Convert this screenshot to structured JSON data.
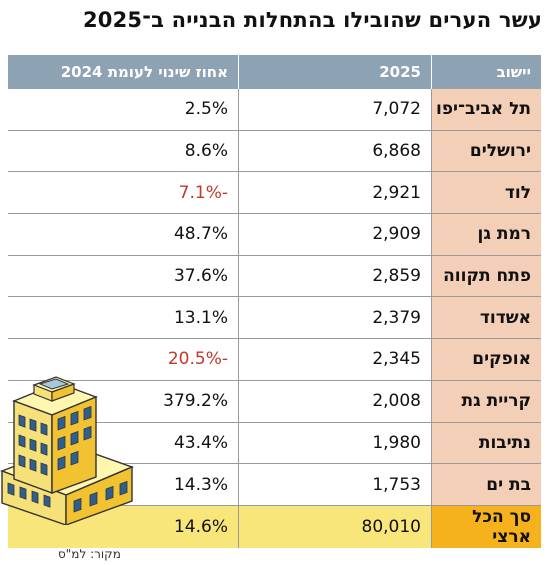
{
  "title": "עשר הערים שהובילו בהתחלות הבנייה ב־2025",
  "headers": {
    "city": "יישוב",
    "value": "2025",
    "pct": "אחוז שינוי לעומת 2024"
  },
  "rows": [
    {
      "city": "תל אביב־יפו",
      "value": "7,072",
      "pct": "2.5%"
    },
    {
      "city": "ירושלים",
      "value": "6,868",
      "pct": "8.6%"
    },
    {
      "city": "לוד",
      "value": "2,921",
      "pct": "-7.1%"
    },
    {
      "city": "רמת גן",
      "value": "2,909",
      "pct": "48.7%"
    },
    {
      "city": "פתח תקווה",
      "value": "2,859",
      "pct": "37.6%"
    },
    {
      "city": "אשדוד",
      "value": "2,379",
      "pct": "13.1%"
    },
    {
      "city": "אופקים",
      "value": "2,345",
      "pct": "-20.5%"
    },
    {
      "city": "קריית גת",
      "value": "2,008",
      "pct": "379.2%"
    },
    {
      "city": "נתיבות",
      "value": "1,980",
      "pct": "43.4%"
    },
    {
      "city": "בת ים",
      "value": "1,753",
      "pct": "14.3%"
    }
  ],
  "total": {
    "city": "סך הכל ארצי",
    "value": "80,010",
    "pct": "14.6%"
  },
  "source": "מקור: למ\"ס",
  "colors": {
    "header": "#8da2b3",
    "city_column": "#f3cfb7",
    "total_row": "#f8e67a",
    "total_city": "#f5b21c",
    "negative": "#c0392b"
  },
  "chart_data": {
    "type": "table",
    "title": "עשר הערים שהובילו בהתחלות הבנייה ב־2025",
    "columns": [
      "יישוב",
      "2025",
      "אחוז שינוי לעומת 2024"
    ],
    "categories": [
      "תל אביב־יפו",
      "ירושלים",
      "לוד",
      "רמת גן",
      "פתח תקווה",
      "אשדוד",
      "אופקים",
      "קריית גת",
      "נתיבות",
      "בת ים",
      "סך הכל ארצי"
    ],
    "series": [
      {
        "name": "2025",
        "values": [
          7072,
          6868,
          2921,
          2909,
          2859,
          2379,
          2345,
          2008,
          1980,
          1753,
          80010
        ]
      },
      {
        "name": "אחוז שינוי לעומת 2024",
        "values": [
          2.5,
          8.6,
          -7.1,
          48.7,
          37.6,
          13.1,
          -20.5,
          379.2,
          43.4,
          14.3,
          14.6
        ]
      }
    ]
  }
}
